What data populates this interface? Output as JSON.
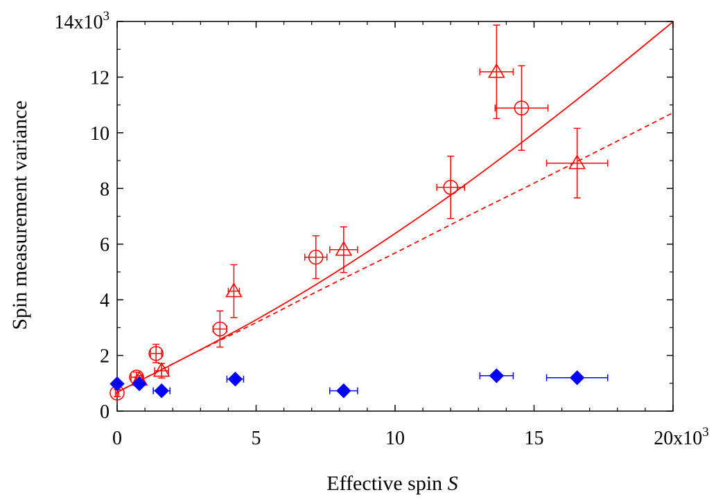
{
  "chart_data": {
    "type": "scatter",
    "xlabel": "Effective spin",
    "xlabel_symbol": "S",
    "ylabel": "Spin measurement variance",
    "xlim": [
      0,
      20000
    ],
    "ylim": [
      0,
      14000
    ],
    "x_ticks": [
      {
        "value": 0,
        "label": "0"
      },
      {
        "value": 5000,
        "label": "5"
      },
      {
        "value": 10000,
        "label": "10"
      },
      {
        "value": 15000,
        "label": "15"
      },
      {
        "value": 20000,
        "label": "20x10",
        "exp": "3"
      }
    ],
    "y_ticks": [
      {
        "value": 0,
        "label": "0"
      },
      {
        "value": 2000,
        "label": "2"
      },
      {
        "value": 4000,
        "label": "4"
      },
      {
        "value": 6000,
        "label": "6"
      },
      {
        "value": 8000,
        "label": "8"
      },
      {
        "value": 10000,
        "label": "10"
      },
      {
        "value": 12000,
        "label": "12"
      },
      {
        "value": 14000,
        "label": "14x10",
        "exp": "3"
      }
    ],
    "grid": false,
    "series": [
      {
        "marker": "circle",
        "color": "#ff0000",
        "points": [
          {
            "x": 0,
            "y": 650,
            "xerr": 60,
            "yerr": 130
          },
          {
            "x": 700,
            "y": 1220,
            "xerr": 200,
            "yerr": 180
          },
          {
            "x": 1400,
            "y": 2070,
            "xerr": 200,
            "yerr": 330
          },
          {
            "x": 3700,
            "y": 2950,
            "xerr": 250,
            "yerr": 650
          },
          {
            "x": 7150,
            "y": 5530,
            "xerr": 400,
            "yerr": 770
          },
          {
            "x": 12000,
            "y": 8040,
            "xerr": 500,
            "yerr": 1120
          },
          {
            "x": 14550,
            "y": 10890,
            "xerr": 950,
            "yerr": 1520
          }
        ]
      },
      {
        "marker": "triangle",
        "color": "#ff0000",
        "points": [
          {
            "x": 800,
            "y": 1130,
            "xerr": 150,
            "yerr": 150
          },
          {
            "x": 1600,
            "y": 1450,
            "xerr": 250,
            "yerr": 260
          },
          {
            "x": 4200,
            "y": 4310,
            "xerr": 200,
            "yerr": 950
          },
          {
            "x": 8150,
            "y": 5800,
            "xerr": 500,
            "yerr": 820
          },
          {
            "x": 13650,
            "y": 12190,
            "xerr": 600,
            "yerr": 1680
          },
          {
            "x": 16550,
            "y": 8910,
            "xerr": 1100,
            "yerr": 1250
          }
        ]
      },
      {
        "marker": "diamond",
        "color": "#0000ff",
        "points": [
          {
            "x": 0,
            "y": 980,
            "xerr": 0,
            "yerr": 0
          },
          {
            "x": 800,
            "y": 980,
            "xerr": 0,
            "yerr": 0
          },
          {
            "x": 1600,
            "y": 730,
            "xerr": 300,
            "yerr": 0
          },
          {
            "x": 4250,
            "y": 1150,
            "xerr": 300,
            "yerr": 0
          },
          {
            "x": 8150,
            "y": 730,
            "xerr": 500,
            "yerr": 0
          },
          {
            "x": 13650,
            "y": 1270,
            "xerr": 600,
            "yerr": 0
          },
          {
            "x": 16550,
            "y": 1200,
            "xerr": 1100,
            "yerr": 0
          }
        ]
      }
    ],
    "fit_lines": [
      {
        "style": "solid",
        "color": "#ff0000",
        "points": [
          [
            0,
            680
          ],
          [
            2500,
            1950
          ],
          [
            5000,
            3280
          ],
          [
            7500,
            4760
          ],
          [
            10000,
            6380
          ],
          [
            12500,
            8120
          ],
          [
            15000,
            9990
          ],
          [
            17500,
            11950
          ],
          [
            20000,
            13990
          ]
        ]
      },
      {
        "style": "dashed",
        "color": "#ff0000",
        "points": [
          [
            0,
            680
          ],
          [
            2500,
            1950
          ],
          [
            5000,
            3180
          ],
          [
            7500,
            4450
          ],
          [
            10000,
            5680
          ],
          [
            12500,
            6950
          ],
          [
            15000,
            8190
          ],
          [
            17500,
            9450
          ],
          [
            20000,
            10720
          ]
        ]
      }
    ]
  }
}
